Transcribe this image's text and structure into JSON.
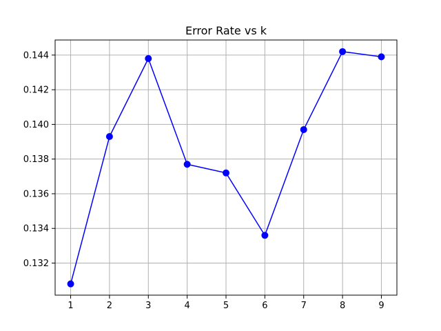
{
  "chart_data": {
    "type": "line",
    "title": "Error Rate vs k",
    "xlabel": "",
    "ylabel": "",
    "x": [
      1,
      2,
      3,
      4,
      5,
      6,
      7,
      8,
      9
    ],
    "series": [
      {
        "values": [
          0.1308,
          0.1393,
          0.1438,
          0.1377,
          0.1372,
          0.1336,
          0.1397,
          0.1442,
          0.1439
        ],
        "color": "#0000ff",
        "marker": "circle"
      }
    ],
    "xticks": [
      "1",
      "2",
      "3",
      "4",
      "5",
      "6",
      "7",
      "8",
      "9"
    ],
    "yticks": [
      "0.132",
      "0.134",
      "0.136",
      "0.138",
      "0.140",
      "0.142",
      "0.144"
    ],
    "xlim": [
      0.6,
      9.4
    ],
    "ylim": [
      0.13015,
      0.14487
    ],
    "grid": true,
    "grid_color": "#b0b0b0",
    "axis_color": "#000000"
  }
}
